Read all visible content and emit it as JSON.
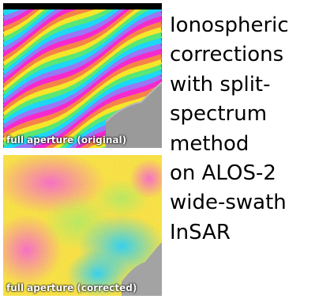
{
  "panels": [
    {
      "caption": "full aperture (original)",
      "colormap": [
        "#ff2bd6",
        "#ffef2c",
        "#20e0ff"
      ]
    },
    {
      "caption": "full aperture (corrected)",
      "colormap": [
        "#ffe84a",
        "#ff7ad0",
        "#3ad8ff"
      ]
    }
  ],
  "description": {
    "lines": [
      "Ionospheric",
      "corrections",
      "with split-",
      "spectrum",
      "method",
      "on ALOS-2",
      "wide-swath",
      "InSAR"
    ]
  }
}
